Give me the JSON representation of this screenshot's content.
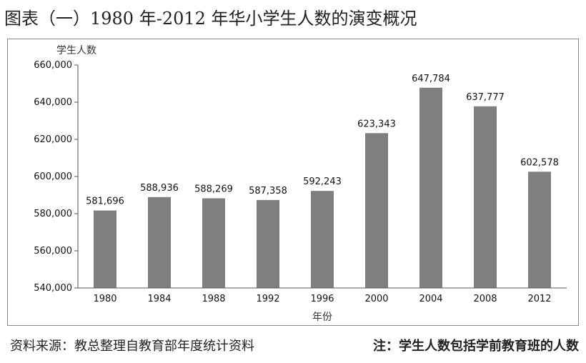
{
  "title": "图表（一）1980 年-2012 年华小学生人数的演变概况",
  "footer": {
    "source": "资料来源：教总整理自教育部年度统计资料",
    "note": "注：学生人数包括学前教育班的人数"
  },
  "colors": {
    "bar": "#7f7f7f",
    "axis": "#555555",
    "frame": "#8a8a8a"
  },
  "chart_data": {
    "type": "bar",
    "categories": [
      "1980",
      "1984",
      "1988",
      "1992",
      "1996",
      "2000",
      "2004",
      "2008",
      "2012"
    ],
    "values": [
      581696,
      588936,
      588269,
      587358,
      592243,
      623343,
      647784,
      637777,
      602578
    ],
    "value_labels": [
      "581,696",
      "588,936",
      "588,269",
      "587,358",
      "592,243",
      "623,343",
      "647,784",
      "637,777",
      "602,578"
    ],
    "ylabel": "学生人数",
    "xlabel": "年份",
    "ylim": [
      540000,
      660000
    ],
    "yticks": [
      540000,
      560000,
      580000,
      600000,
      620000,
      640000,
      660000
    ],
    "ytick_labels": [
      "540,000",
      "560,000",
      "580,000",
      "600,000",
      "620,000",
      "640,000",
      "660,000"
    ],
    "grid": false,
    "legend": "none"
  }
}
